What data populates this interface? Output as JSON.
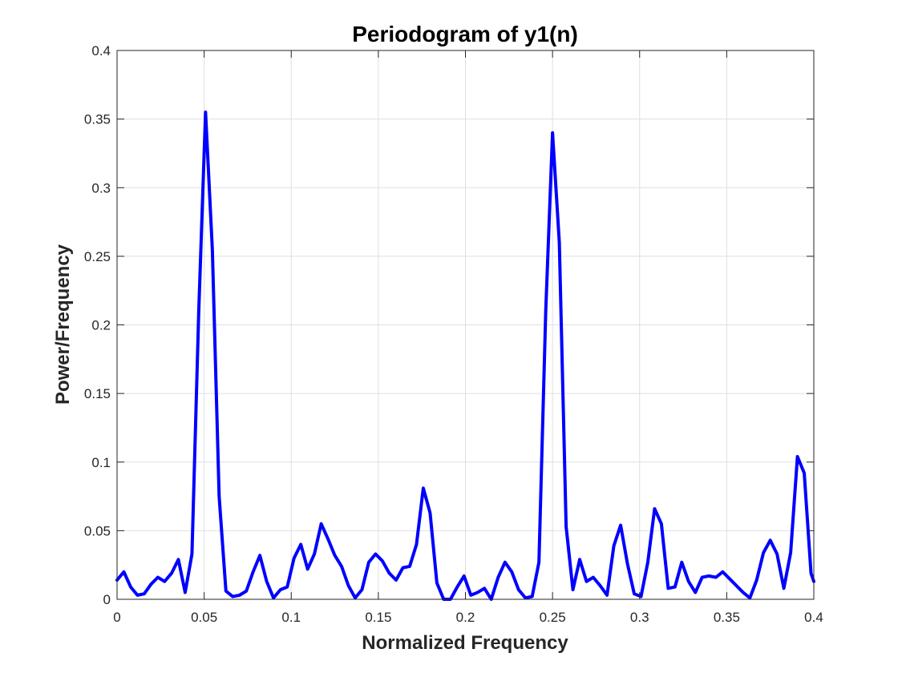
{
  "chart_data": {
    "type": "line",
    "title": "Periodogram of y1(n)",
    "xlabel": "Normalized Frequency",
    "ylabel": "Power/Frequency",
    "xlim": [
      0,
      0.4
    ],
    "ylim": [
      0,
      0.4
    ],
    "xticks": [
      0,
      0.05,
      0.1,
      0.15,
      0.2,
      0.25,
      0.3,
      0.35,
      0.4
    ],
    "xtick_labels": [
      "0",
      "0.05",
      "0.1",
      "0.15",
      "0.2",
      "0.25",
      "0.3",
      "0.35",
      "0.4"
    ],
    "yticks": [
      0,
      0.05,
      0.1,
      0.15,
      0.2,
      0.25,
      0.3,
      0.35,
      0.4
    ],
    "ytick_labels": [
      "0",
      "0.05",
      "0.1",
      "0.15",
      "0.2",
      "0.25",
      "0.3",
      "0.35",
      "0.4"
    ],
    "grid": true,
    "series": [
      {
        "color": "#0000ff",
        "x": [
          0,
          0.0039,
          0.0078,
          0.0117,
          0.0156,
          0.0195,
          0.0234,
          0.0273,
          0.0313,
          0.0352,
          0.0391,
          0.043,
          0.0469,
          0.0508,
          0.0547,
          0.0586,
          0.0625,
          0.0664,
          0.0703,
          0.0742,
          0.0781,
          0.082,
          0.0859,
          0.0898,
          0.0938,
          0.0977,
          0.1016,
          0.1055,
          0.1094,
          0.1133,
          0.1172,
          0.1211,
          0.125,
          0.1289,
          0.1328,
          0.1367,
          0.1406,
          0.1445,
          0.1484,
          0.1523,
          0.1563,
          0.1602,
          0.1641,
          0.168,
          0.1719,
          0.1758,
          0.1797,
          0.1836,
          0.1875,
          0.1914,
          0.1953,
          0.1992,
          0.2031,
          0.207,
          0.2109,
          0.2148,
          0.2188,
          0.2227,
          0.2266,
          0.2305,
          0.2344,
          0.2383,
          0.2422,
          0.2461,
          0.25,
          0.2539,
          0.2578,
          0.2617,
          0.2656,
          0.2695,
          0.2734,
          0.2773,
          0.2813,
          0.2852,
          0.2891,
          0.293,
          0.2969,
          0.3008,
          0.3047,
          0.3086,
          0.3125,
          0.3164,
          0.3203,
          0.3242,
          0.3281,
          0.332,
          0.3359,
          0.3398,
          0.3438,
          0.3477,
          0.3516,
          0.3555,
          0.3594,
          0.3633,
          0.3672,
          0.3711,
          0.375,
          0.3789,
          0.3828,
          0.3867,
          0.3906,
          0.3945,
          0.3984,
          0.4
        ],
        "y": [
          0.014,
          0.02,
          0.009,
          0.003,
          0.004,
          0.011,
          0.016,
          0.013,
          0.019,
          0.029,
          0.005,
          0.033,
          0.21,
          0.355,
          0.255,
          0.075,
          0.006,
          0.002,
          0.003,
          0.006,
          0.02,
          0.032,
          0.013,
          0.001,
          0.007,
          0.009,
          0.03,
          0.04,
          0.022,
          0.033,
          0.055,
          0.044,
          0.032,
          0.024,
          0.01,
          0.001,
          0.007,
          0.027,
          0.033,
          0.028,
          0.019,
          0.014,
          0.023,
          0.024,
          0.04,
          0.081,
          0.063,
          0.012,
          0.0,
          0.0,
          0.009,
          0.017,
          0.003,
          0.005,
          0.008,
          0.0,
          0.016,
          0.027,
          0.02,
          0.007,
          0.001,
          0.002,
          0.027,
          0.21,
          0.34,
          0.26,
          0.053,
          0.007,
          0.029,
          0.013,
          0.016,
          0.01,
          0.003,
          0.039,
          0.054,
          0.026,
          0.004,
          0.002,
          0.027,
          0.066,
          0.055,
          0.008,
          0.009,
          0.027,
          0.013,
          0.005,
          0.016,
          0.017,
          0.016,
          0.02,
          0.015,
          0.01,
          0.005,
          0.001,
          0.014,
          0.034,
          0.043,
          0.033,
          0.008,
          0.034,
          0.104,
          0.092,
          0.019,
          0.013
        ]
      }
    ]
  }
}
